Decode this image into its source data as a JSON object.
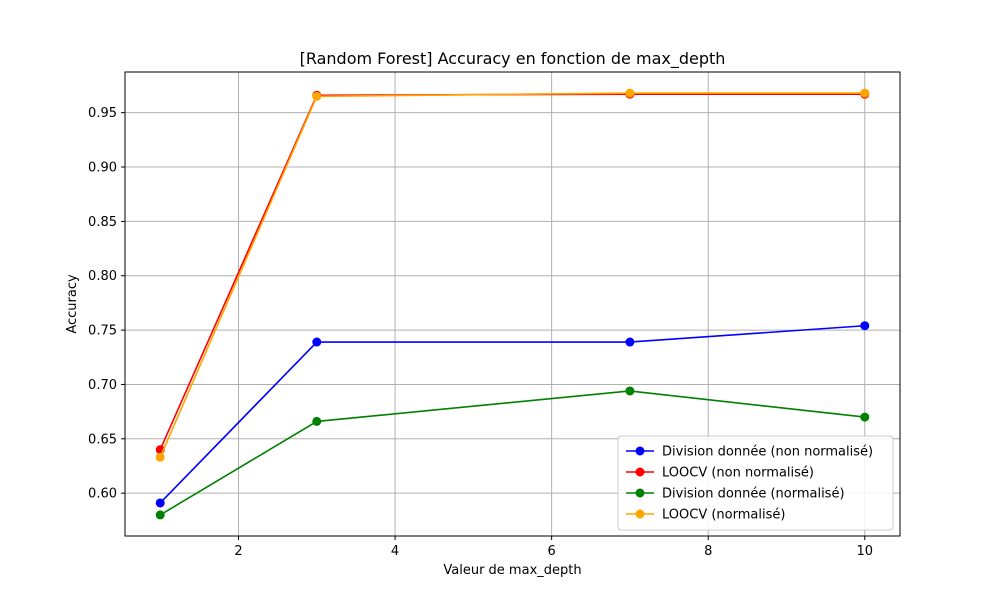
{
  "chart_data": {
    "type": "line",
    "title": "[Random Forest] Accuracy en fonction de max_depth",
    "xlabel": "Valeur de max_depth",
    "ylabel": "Accuracy",
    "x": [
      1,
      3,
      7,
      10
    ],
    "xlim": [
      0.55,
      10.45
    ],
    "ylim": [
      0.5606,
      0.9874
    ],
    "xticks": [
      2,
      4,
      6,
      8,
      10
    ],
    "yticks": [
      0.6,
      0.65,
      0.7,
      0.75,
      0.8,
      0.85,
      0.9,
      0.95
    ],
    "xtick_labels": [
      "2",
      "4",
      "6",
      "8",
      "10"
    ],
    "ytick_labels": [
      "0.60",
      "0.65",
      "0.70",
      "0.75",
      "0.80",
      "0.85",
      "0.90",
      "0.95"
    ],
    "grid": true,
    "legend_position": "bottom-right",
    "series": [
      {
        "name": "Division donnée (non normalisé)",
        "color": "#0000ff",
        "values": [
          0.591,
          0.739,
          0.739,
          0.754
        ]
      },
      {
        "name": "LOOCV (non normalisé)",
        "color": "#ff0000",
        "values": [
          0.64,
          0.966,
          0.967,
          0.967
        ]
      },
      {
        "name": "Division donnée (normalisé)",
        "color": "#008000",
        "values": [
          0.58,
          0.666,
          0.694,
          0.67
        ]
      },
      {
        "name": "LOOCV (normalisé)",
        "color": "#ffa500",
        "values": [
          0.633,
          0.965,
          0.968,
          0.968
        ]
      }
    ]
  }
}
